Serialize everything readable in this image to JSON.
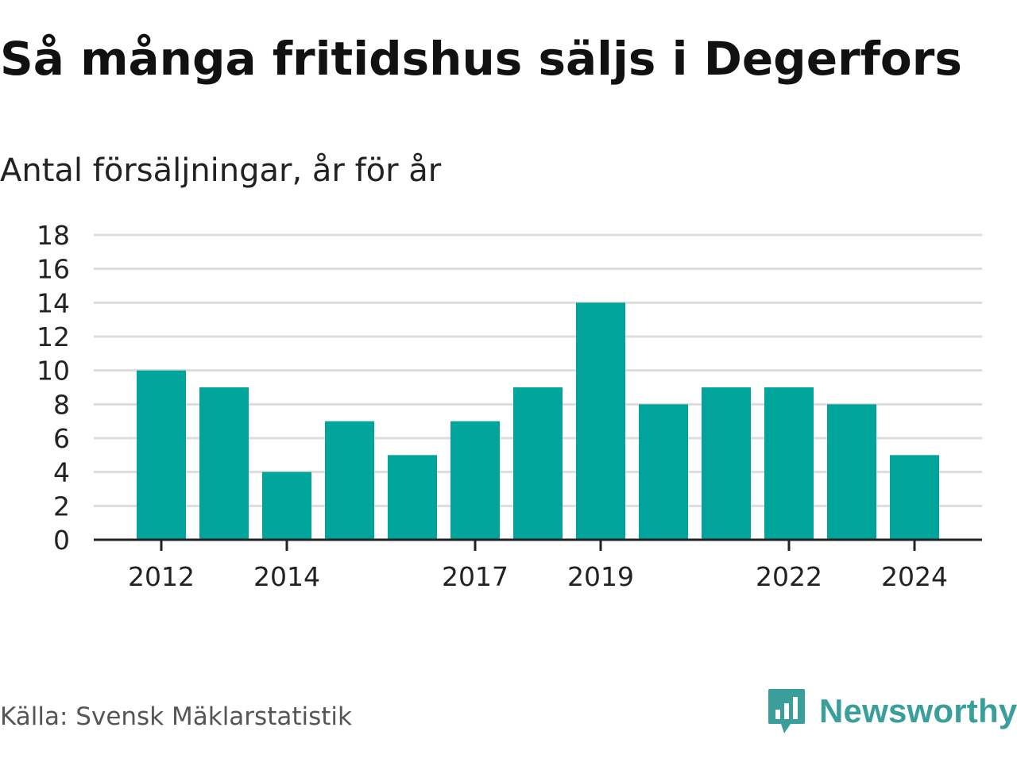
{
  "title": "Så många fritidshus säljs i Degerfors",
  "subtitle": "Antal försäljningar, år för år",
  "source": "Källa: Svensk Mäklarstatistik",
  "brand": {
    "name": "Newsworthy",
    "icon": "newsworthy-logo-icon",
    "color": "#3a9e9a"
  },
  "colors": {
    "bar": "#00a49a",
    "grid": "#dddddd",
    "axis": "#222222"
  },
  "chart_data": {
    "type": "bar",
    "title": "Så många fritidshus säljs i Degerfors",
    "subtitle": "Antal försäljningar, år för år",
    "xlabel": "",
    "ylabel": "",
    "categories": [
      "2012",
      "2013",
      "2014",
      "2015",
      "2016",
      "2017",
      "2018",
      "2019",
      "2020",
      "2021",
      "2022",
      "2023",
      "2024"
    ],
    "values": [
      10,
      9,
      4,
      7,
      5,
      7,
      9,
      14,
      8,
      9,
      9,
      8,
      5
    ],
    "x_tick_labels": [
      "2012",
      "2014",
      "2017",
      "2019",
      "2022",
      "2024"
    ],
    "ylim": [
      0,
      18
    ],
    "y_ticks": [
      0,
      2,
      4,
      6,
      8,
      10,
      12,
      14,
      16,
      18
    ],
    "grid": true,
    "legend": "none"
  }
}
